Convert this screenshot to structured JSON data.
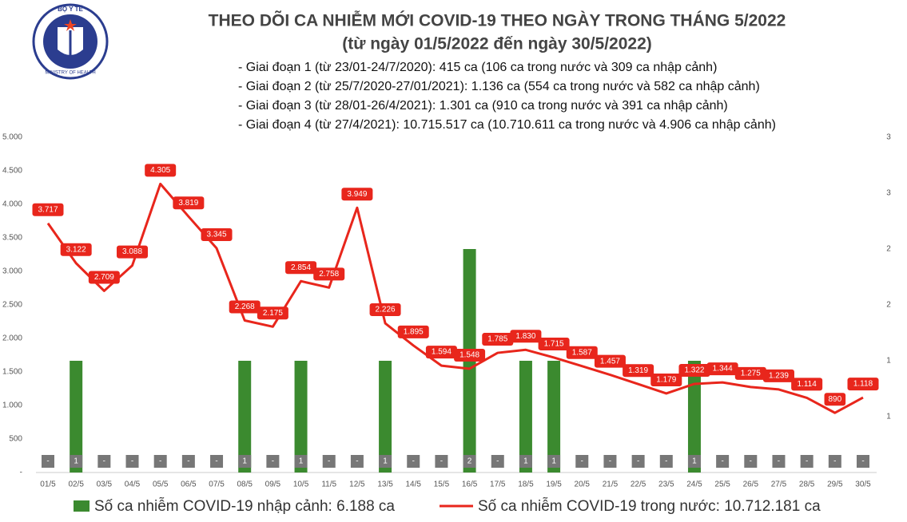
{
  "logo": {
    "title": "BỘ Y TẾ",
    "subtitle": "MINISTRY OF HEALTH"
  },
  "chart_data": {
    "type": "combo",
    "title": "THEO DÕI CA NHIỄM MỚI COVID-19 THEO NGÀY TRONG THÁNG 5/2022",
    "subtitle": "(từ ngày 01/5/2022 đến ngày 30/5/2022)",
    "annotations": [
      "- Giai đoạn 1 (từ 23/01-24/7/2020): 415 ca (106 ca trong nước và 309 ca nhập cảnh)",
      "- Giai đoạn 2 (từ 25/7/2020-27/01/2021): 1.136 ca (554 ca trong nước và 582 ca nhập cảnh)",
      "- Giai đoạn 3 (từ 28/01-26/4/2021): 1.301 ca (910 ca trong nước và 391 ca nhập cảnh)",
      "- Giai đoạn 4 (từ 27/4/2021): 10.715.517 ca (10.710.611 ca trong nước và 4.906 ca nhập cảnh)"
    ],
    "categories": [
      "01/5",
      "02/5",
      "03/5",
      "04/5",
      "05/5",
      "06/5",
      "07/5",
      "08/5",
      "09/5",
      "10/5",
      "11/5",
      "12/5",
      "13/5",
      "14/5",
      "15/5",
      "16/5",
      "17/5",
      "18/5",
      "19/5",
      "20/5",
      "21/5",
      "22/5",
      "23/5",
      "24/5",
      "25/5",
      "26/5",
      "27/5",
      "28/5",
      "29/5",
      "30/5"
    ],
    "ylim": [
      0,
      5000
    ],
    "yticks": [
      {
        "value": 0,
        "label": "-"
      },
      500,
      {
        "value": 1000,
        "label": "1.000"
      },
      {
        "value": 1500,
        "label": "1.500"
      },
      {
        "value": 2000,
        "label": "2.000"
      },
      {
        "value": 2500,
        "label": "2.500"
      },
      {
        "value": 3000,
        "label": "3.000"
      },
      {
        "value": 3500,
        "label": "3.500"
      },
      {
        "value": 4000,
        "label": "4.000"
      },
      {
        "value": 4500,
        "label": "4.500"
      },
      {
        "value": 5000,
        "label": "5.000"
      }
    ],
    "y2lim": [
      0,
      3
    ],
    "y2ticks": [
      {
        "value": 0.5,
        "label": "1"
      },
      1,
      {
        "value": 1.5,
        "label": "2"
      },
      2,
      {
        "value": 2.5,
        "label": "3"
      },
      3
    ],
    "series": [
      {
        "name": "Số ca nhiễm COVID-19 nhập cảnh: 6.188 ca",
        "type": "bar",
        "axis": "y2",
        "color": "#3b8a2f",
        "values": [
          0,
          1,
          0,
          0,
          0,
          0,
          0,
          1,
          0,
          1,
          0,
          0,
          1,
          0,
          0,
          2,
          0,
          1,
          1,
          0,
          0,
          0,
          0,
          1,
          0,
          0,
          0,
          0,
          0,
          0
        ],
        "value_labels": [
          "-",
          "1",
          "-",
          "-",
          "-",
          "-",
          "-",
          "1",
          "-",
          "1",
          "-",
          "-",
          "1",
          "-",
          "-",
          "2",
          "-",
          "1",
          "1",
          "-",
          "-",
          "-",
          "-",
          "1",
          "-",
          "-",
          "-",
          "-",
          "-",
          "-"
        ]
      },
      {
        "name": "Số ca nhiễm COVID-19 trong nước: 10.712.181 ca",
        "type": "line",
        "color": "#e8261c",
        "values": [
          3717,
          3122,
          2709,
          3088,
          4305,
          3819,
          3345,
          2268,
          2175,
          2854,
          2758,
          3949,
          2226,
          1895,
          1594,
          1548,
          1785,
          1830,
          1715,
          1587,
          1457,
          1319,
          1179,
          1322,
          1344,
          1275,
          1239,
          1114,
          890,
          1118
        ],
        "value_labels": [
          "3.717",
          "3.122",
          "2.709",
          "3.088",
          "4.305",
          "3.819",
          "3.345",
          "2.268",
          "2.175",
          "2.854",
          "2.758",
          "3.949",
          "2.226",
          "1.895",
          "1.594",
          "1.548",
          "1.785",
          "1.830",
          "1.715",
          "1.587",
          "1.457",
          "1.319",
          "1.179",
          "1.322",
          "1.344",
          "1.275",
          "1.239",
          "1.114",
          "890",
          "1.118"
        ]
      }
    ]
  }
}
